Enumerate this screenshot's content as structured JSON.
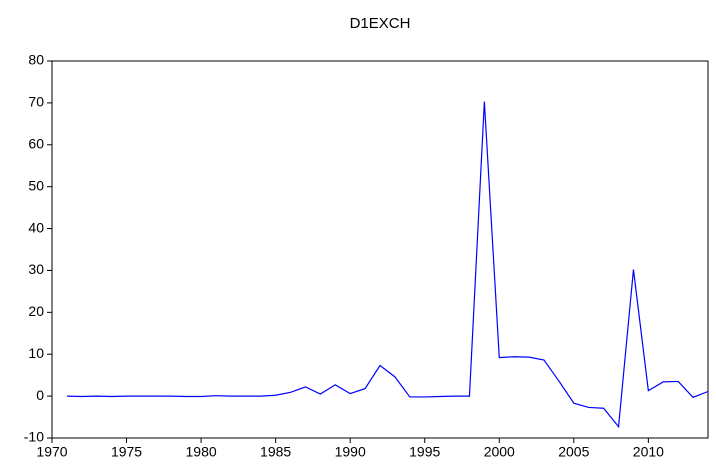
{
  "chart_data": {
    "type": "line",
    "title": "D1EXCH",
    "x": [
      1971,
      1972,
      1973,
      1974,
      1975,
      1976,
      1977,
      1978,
      1979,
      1980,
      1981,
      1982,
      1983,
      1984,
      1985,
      1986,
      1987,
      1988,
      1989,
      1990,
      1991,
      1992,
      1993,
      1994,
      1995,
      1996,
      1997,
      1998,
      1999,
      2000,
      2001,
      2002,
      2003,
      2004,
      2005,
      2006,
      2007,
      2008,
      2009,
      2010,
      2011,
      2012,
      2013,
      2014
    ],
    "series": [
      {
        "name": "D1EXCH",
        "color": "#0000ff",
        "values": [
          0,
          -0.1,
          0,
          -0.1,
          0,
          0,
          0,
          0,
          -0.1,
          -0.1,
          0.1,
          0,
          0,
          0,
          0.2,
          0.9,
          2.2,
          0.5,
          2.7,
          0.6,
          1.8,
          7.3,
          4.6,
          -0.2,
          -0.2,
          -0.1,
          0,
          0,
          70.3,
          9.2,
          9.4,
          9.3,
          8.6,
          3.6,
          -1.7,
          -2.7,
          -2.9,
          -7.3,
          30.2,
          1.3,
          3.4,
          3.5,
          -0.3,
          1.1
        ]
      }
    ],
    "xlim": [
      1970,
      2014
    ],
    "xticks": [
      1970,
      1975,
      1980,
      1985,
      1990,
      1995,
      2000,
      2005,
      2010
    ],
    "ylim": [
      -10,
      80
    ],
    "yticks": [
      -10,
      0,
      10,
      20,
      30,
      40,
      50,
      60,
      70,
      80
    ],
    "grid": false
  }
}
